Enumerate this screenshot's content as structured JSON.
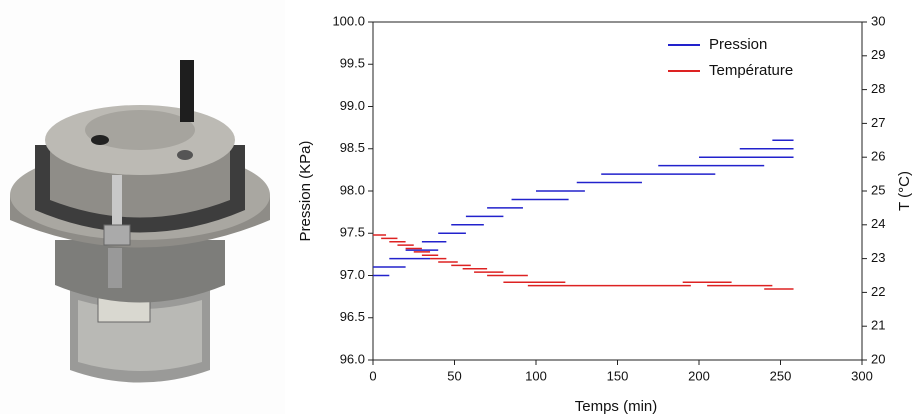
{
  "chart_data": {
    "type": "line",
    "x_label": "Temps (min)",
    "y_label": "Pression (KPa)",
    "y2_label": "T (°C)",
    "xlim": [
      0,
      300
    ],
    "xticks": [
      0,
      50,
      100,
      150,
      200,
      250,
      300
    ],
    "ylim": [
      96.0,
      100.0
    ],
    "yticks": [
      {
        "value": 96.0,
        "label": "96.0"
      },
      {
        "value": 96.5,
        "label": "96.5"
      },
      {
        "value": 97.0,
        "label": "97.0"
      },
      {
        "value": 97.5,
        "label": "97.5"
      },
      {
        "value": 98.0,
        "label": "98.0"
      },
      {
        "value": 98.5,
        "label": "98.5"
      },
      {
        "value": 99.0,
        "label": "99.0"
      },
      {
        "value": 99.5,
        "label": "99.5"
      },
      {
        "value": 100.0,
        "label": "100.0"
      }
    ],
    "y2lim": [
      20,
      30
    ],
    "y2ticks": [
      20,
      21,
      22,
      23,
      24,
      25,
      26,
      27,
      28,
      29,
      30
    ],
    "legend": "top-right",
    "series": [
      {
        "name": "Pression",
        "color": "#2222cc",
        "axis": "y",
        "x": [
          0,
          10,
          null,
          0,
          20,
          null,
          10,
          35,
          null,
          20,
          40,
          null,
          30,
          45,
          null,
          40,
          57,
          null,
          48,
          68,
          null,
          57,
          80,
          null,
          70,
          92,
          null,
          85,
          120,
          null,
          100,
          130,
          null,
          125,
          165,
          null,
          140,
          210,
          null,
          175,
          240,
          null,
          200,
          258,
          null,
          225,
          258,
          null,
          245,
          258
        ],
        "values": [
          97.0,
          97.0,
          null,
          97.1,
          97.1,
          null,
          97.2,
          97.2,
          null,
          97.3,
          97.3,
          null,
          97.4,
          97.4,
          null,
          97.5,
          97.5,
          null,
          97.6,
          97.6,
          null,
          97.7,
          97.7,
          null,
          97.8,
          97.8,
          null,
          97.9,
          97.9,
          null,
          98.0,
          98.0,
          null,
          98.1,
          98.1,
          null,
          98.2,
          98.2,
          null,
          98.3,
          98.3,
          null,
          98.4,
          98.4,
          null,
          98.5,
          98.5,
          null,
          98.6,
          98.6
        ]
      },
      {
        "name": "Température",
        "color": "#dd2222",
        "axis": "y2",
        "x": [
          0,
          8,
          null,
          5,
          15,
          null,
          10,
          20,
          null,
          15,
          25,
          null,
          20,
          30,
          null,
          25,
          35,
          null,
          30,
          40,
          null,
          35,
          45,
          null,
          40,
          52,
          null,
          48,
          60,
          null,
          55,
          70,
          null,
          62,
          80,
          null,
          70,
          95,
          null,
          80,
          118,
          null,
          95,
          195,
          null,
          190,
          220,
          null,
          205,
          245,
          null,
          240,
          258
        ],
        "values": [
          23.7,
          23.7,
          null,
          23.6,
          23.6,
          null,
          23.5,
          23.5,
          null,
          23.4,
          23.4,
          null,
          23.3,
          23.3,
          null,
          23.2,
          23.2,
          null,
          23.1,
          23.1,
          null,
          23.0,
          23.0,
          null,
          22.9,
          22.9,
          null,
          22.8,
          22.8,
          null,
          22.7,
          22.7,
          null,
          22.6,
          22.6,
          null,
          22.5,
          22.5,
          null,
          22.3,
          22.3,
          null,
          22.2,
          22.2,
          null,
          22.3,
          22.3,
          null,
          22.2,
          22.2,
          null,
          22.1,
          22.1
        ]
      }
    ]
  }
}
